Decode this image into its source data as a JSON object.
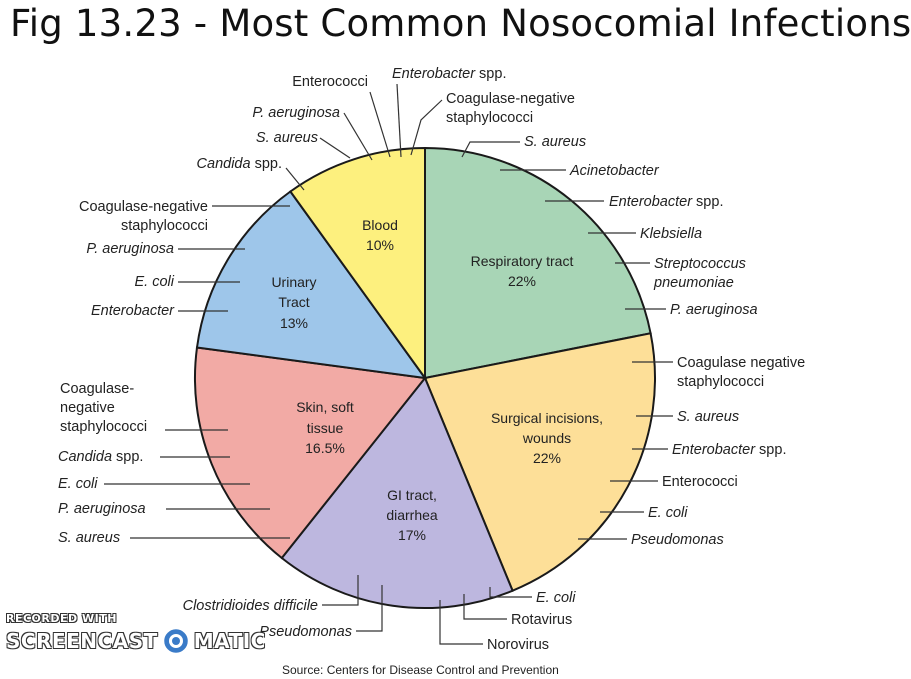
{
  "title": "Fig 13.23 - Most Common Nosocomial Infections",
  "watermark": {
    "top": "RECORDED WITH",
    "left": "SCREENCAST",
    "right": "MATIC"
  },
  "source_partial": "Source: Centers for Disease Control and Prevention",
  "colors": {
    "respiratory": "#a8d5b6",
    "surgical": "#fddf98",
    "gi": "#bdb7df",
    "skin": "#f2aaa5",
    "urinary": "#9ec6ea",
    "blood": "#fdf07e",
    "outline": "#1a1a1a"
  },
  "chart_data": {
    "type": "pie",
    "slices": [
      {
        "label": "Respiratory tract",
        "value": 22,
        "value_label": "22%",
        "color": "#a8d5b6",
        "organisms": [
          "S. aureus",
          "Acinetobacter",
          "Enterobacter spp.",
          "Klebsiella",
          "Streptococcus pneumoniae",
          "P. aeruginosa"
        ]
      },
      {
        "label": "Surgical incisions, wounds",
        "value": 22,
        "value_label": "22%",
        "color": "#fddf98",
        "organisms": [
          "Coagulase negative staphylococci",
          "S. aureus",
          "Enterobacter spp.",
          "Enterococci",
          "E. coli",
          "Pseudomonas"
        ]
      },
      {
        "label": "GI tract, diarrhea",
        "value": 17,
        "value_label": "17%",
        "color": "#bdb7df",
        "organisms": [
          "E. coli",
          "Rotavirus",
          "Norovirus",
          "Pseudomonas",
          "Clostridioides difficile"
        ]
      },
      {
        "label": "Skin, soft tissue",
        "value": 16.5,
        "value_label": "16.5%",
        "color": "#f2aaa5",
        "organisms": [
          "Coagulase-negative staphylococci",
          "Candida spp.",
          "E. coli",
          "P. aeruginosa",
          "S. aureus"
        ]
      },
      {
        "label": "Urinary Tract",
        "value": 13,
        "value_label": "13%",
        "color": "#9ec6ea",
        "organisms": [
          "Coagulase-negative staphylococci",
          "P. aeruginosa",
          "E. coli",
          "Enterobacter"
        ]
      },
      {
        "label": "Blood",
        "value": 10,
        "value_label": "10%",
        "color": "#fdf07e",
        "organisms": [
          "Candida spp.",
          "S. aureus",
          "P. aeruginosa",
          "Enterococci",
          "Enterobacter spp.",
          "Coagulase-negative staphylococci"
        ]
      }
    ]
  }
}
